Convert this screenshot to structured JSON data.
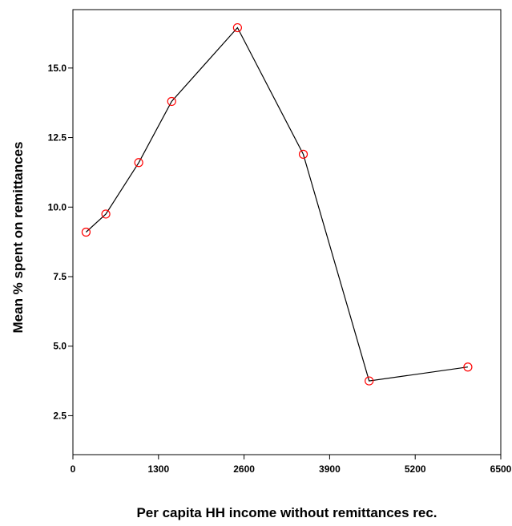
{
  "chart_data": {
    "type": "line",
    "title": "",
    "xlabel": "Per capita HH income without remittances rec.",
    "ylabel": "Mean % spent on remittances",
    "xlim": [
      0,
      6500
    ],
    "ylim": [
      1.1,
      17.1
    ],
    "xticks": [
      0,
      1300,
      2600,
      3900,
      5200,
      6500
    ],
    "yticks": [
      2.5,
      5.0,
      7.5,
      10.0,
      12.5,
      15.0
    ],
    "xtick_labels": [
      "0",
      "1300",
      "2600",
      "3900",
      "5200",
      "6500"
    ],
    "ytick_labels": [
      "2.5",
      "5.0",
      "7.5",
      "10.0",
      "12.5",
      "15.0"
    ],
    "grid": false,
    "series": [
      {
        "line_color": "#000000",
        "marker": "open-circle",
        "marker_color": "#ff0000",
        "points": [
          {
            "x": 200,
            "y": 9.1
          },
          {
            "x": 500,
            "y": 9.75
          },
          {
            "x": 1000,
            "y": 11.6
          },
          {
            "x": 1500,
            "y": 13.8
          },
          {
            "x": 2500,
            "y": 16.45
          },
          {
            "x": 3500,
            "y": 11.9
          },
          {
            "x": 4500,
            "y": 3.75
          },
          {
            "x": 6000,
            "y": 4.25
          }
        ]
      }
    ]
  }
}
